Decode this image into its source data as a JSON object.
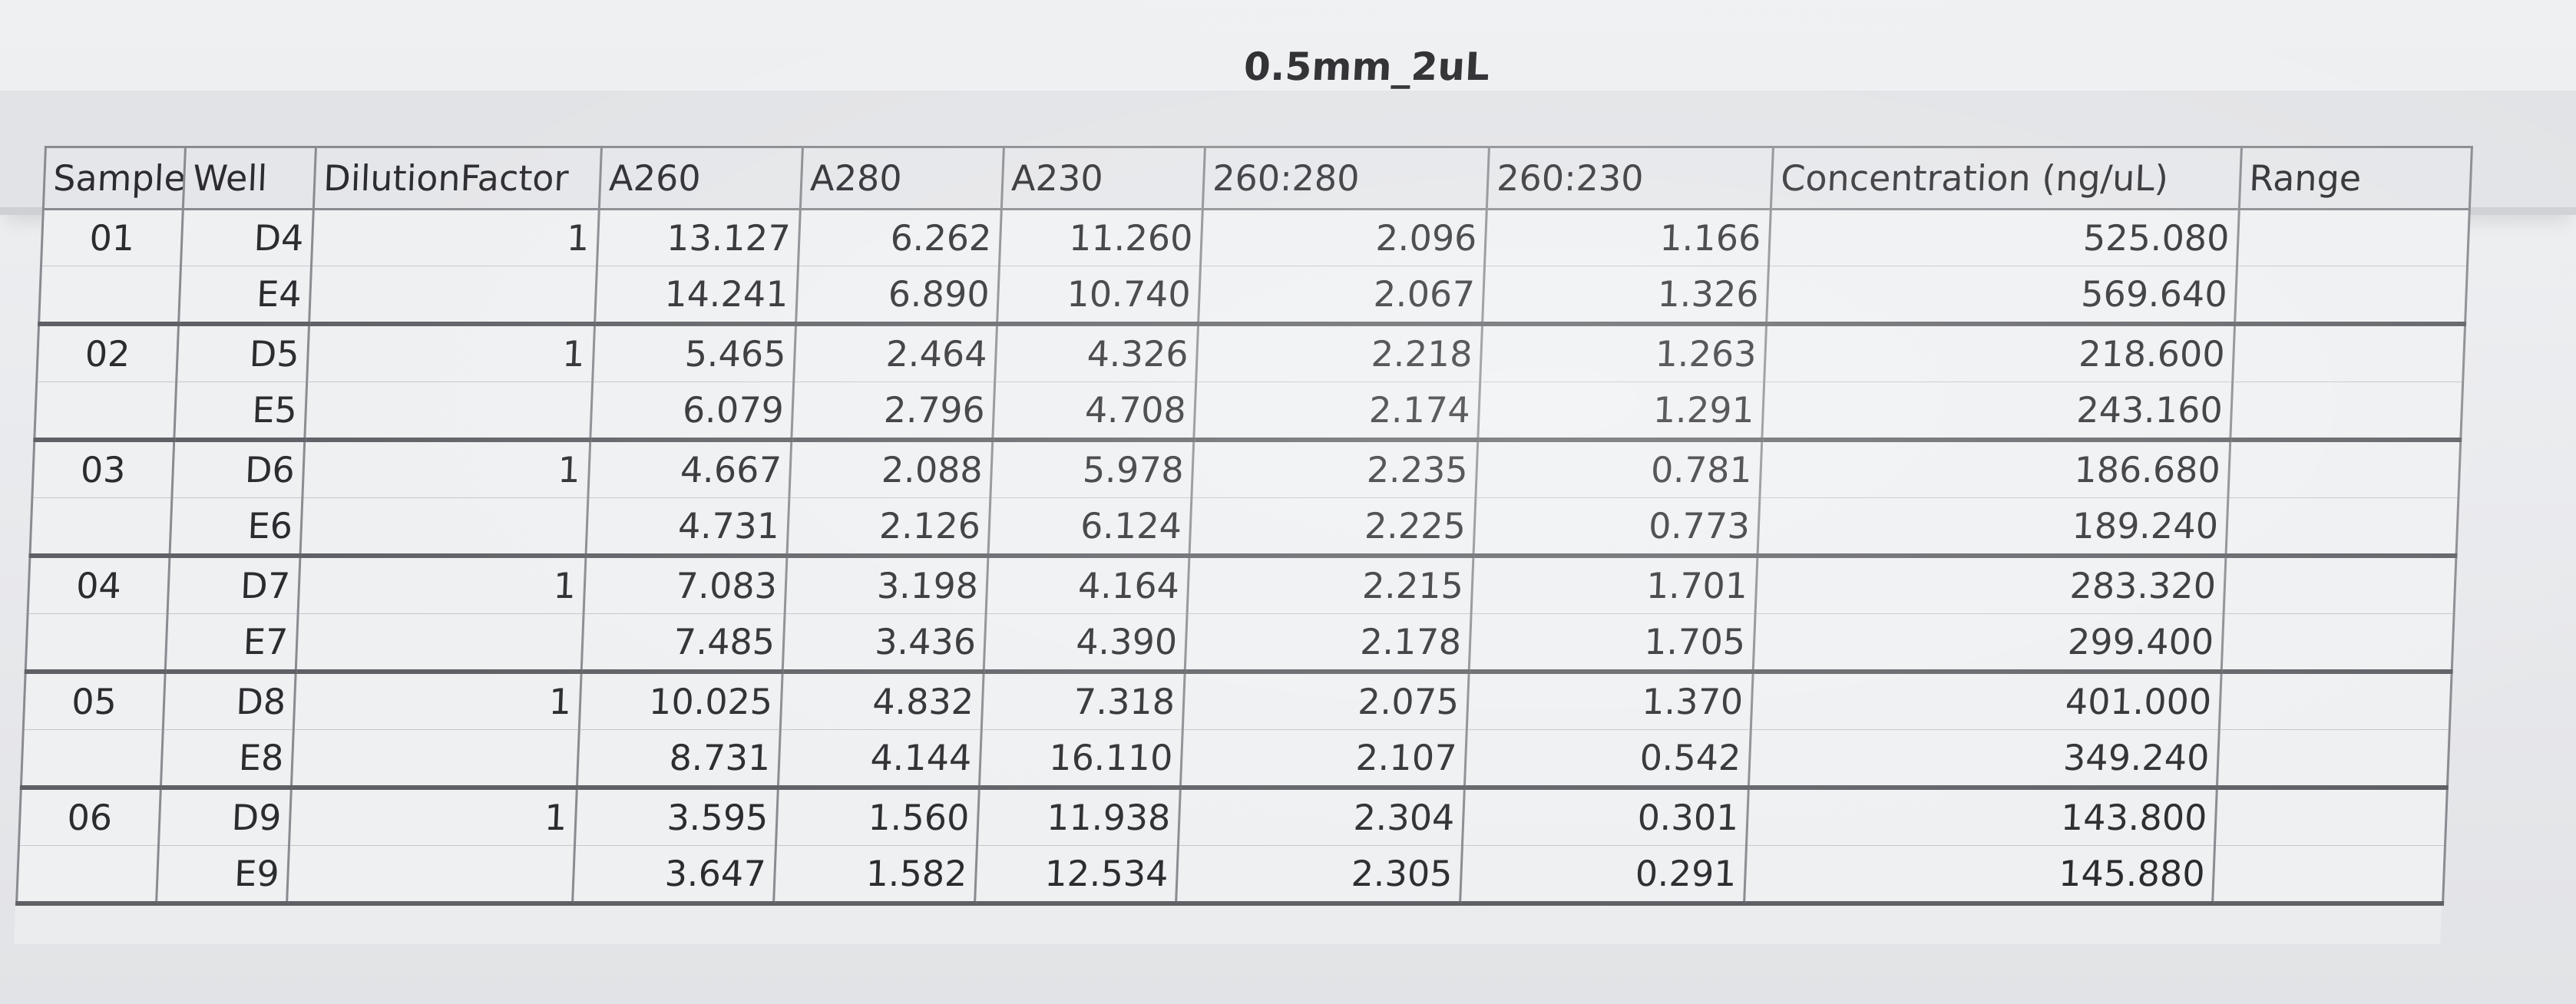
{
  "title": "0.5mm_2uL",
  "columns": [
    "Sample",
    "Well",
    "DilutionFactor",
    "A260",
    "A280",
    "A230",
    "260:280",
    "260:230",
    "Concentration (ng/uL)",
    "Range"
  ],
  "rows": [
    {
      "sample": "01",
      "well": "D4",
      "dilution": "1",
      "a260": "13.127",
      "a280": "6.262",
      "a230": "11.260",
      "r260_280": "2.096",
      "r260_230": "1.166",
      "conc": "525.080",
      "range": ""
    },
    {
      "sample": "",
      "well": "E4",
      "dilution": "",
      "a260": "14.241",
      "a280": "6.890",
      "a230": "10.740",
      "r260_280": "2.067",
      "r260_230": "1.326",
      "conc": "569.640",
      "range": ""
    },
    {
      "sample": "02",
      "well": "D5",
      "dilution": "1",
      "a260": "5.465",
      "a280": "2.464",
      "a230": "4.326",
      "r260_280": "2.218",
      "r260_230": "1.263",
      "conc": "218.600",
      "range": ""
    },
    {
      "sample": "",
      "well": "E5",
      "dilution": "",
      "a260": "6.079",
      "a280": "2.796",
      "a230": "4.708",
      "r260_280": "2.174",
      "r260_230": "1.291",
      "conc": "243.160",
      "range": ""
    },
    {
      "sample": "03",
      "well": "D6",
      "dilution": "1",
      "a260": "4.667",
      "a280": "2.088",
      "a230": "5.978",
      "r260_280": "2.235",
      "r260_230": "0.781",
      "conc": "186.680",
      "range": ""
    },
    {
      "sample": "",
      "well": "E6",
      "dilution": "",
      "a260": "4.731",
      "a280": "2.126",
      "a230": "6.124",
      "r260_280": "2.225",
      "r260_230": "0.773",
      "conc": "189.240",
      "range": ""
    },
    {
      "sample": "04",
      "well": "D7",
      "dilution": "1",
      "a260": "7.083",
      "a280": "3.198",
      "a230": "4.164",
      "r260_280": "2.215",
      "r260_230": "1.701",
      "conc": "283.320",
      "range": ""
    },
    {
      "sample": "",
      "well": "E7",
      "dilution": "",
      "a260": "7.485",
      "a280": "3.436",
      "a230": "4.390",
      "r260_280": "2.178",
      "r260_230": "1.705",
      "conc": "299.400",
      "range": ""
    },
    {
      "sample": "05",
      "well": "D8",
      "dilution": "1",
      "a260": "10.025",
      "a280": "4.832",
      "a230": "7.318",
      "r260_280": "2.075",
      "r260_230": "1.370",
      "conc": "401.000",
      "range": ""
    },
    {
      "sample": "",
      "well": "E8",
      "dilution": "",
      "a260": "8.731",
      "a280": "4.144",
      "a230": "16.110",
      "r260_280": "2.107",
      "r260_230": "0.542",
      "conc": "349.240",
      "range": ""
    },
    {
      "sample": "06",
      "well": "D9",
      "dilution": "1",
      "a260": "3.595",
      "a280": "1.560",
      "a230": "11.938",
      "r260_280": "2.304",
      "r260_230": "0.301",
      "conc": "143.800",
      "range": ""
    },
    {
      "sample": "",
      "well": "E9",
      "dilution": "",
      "a260": "3.647",
      "a280": "1.582",
      "a230": "12.534",
      "r260_280": "2.305",
      "r260_230": "0.291",
      "conc": "145.880",
      "range": ""
    }
  ]
}
